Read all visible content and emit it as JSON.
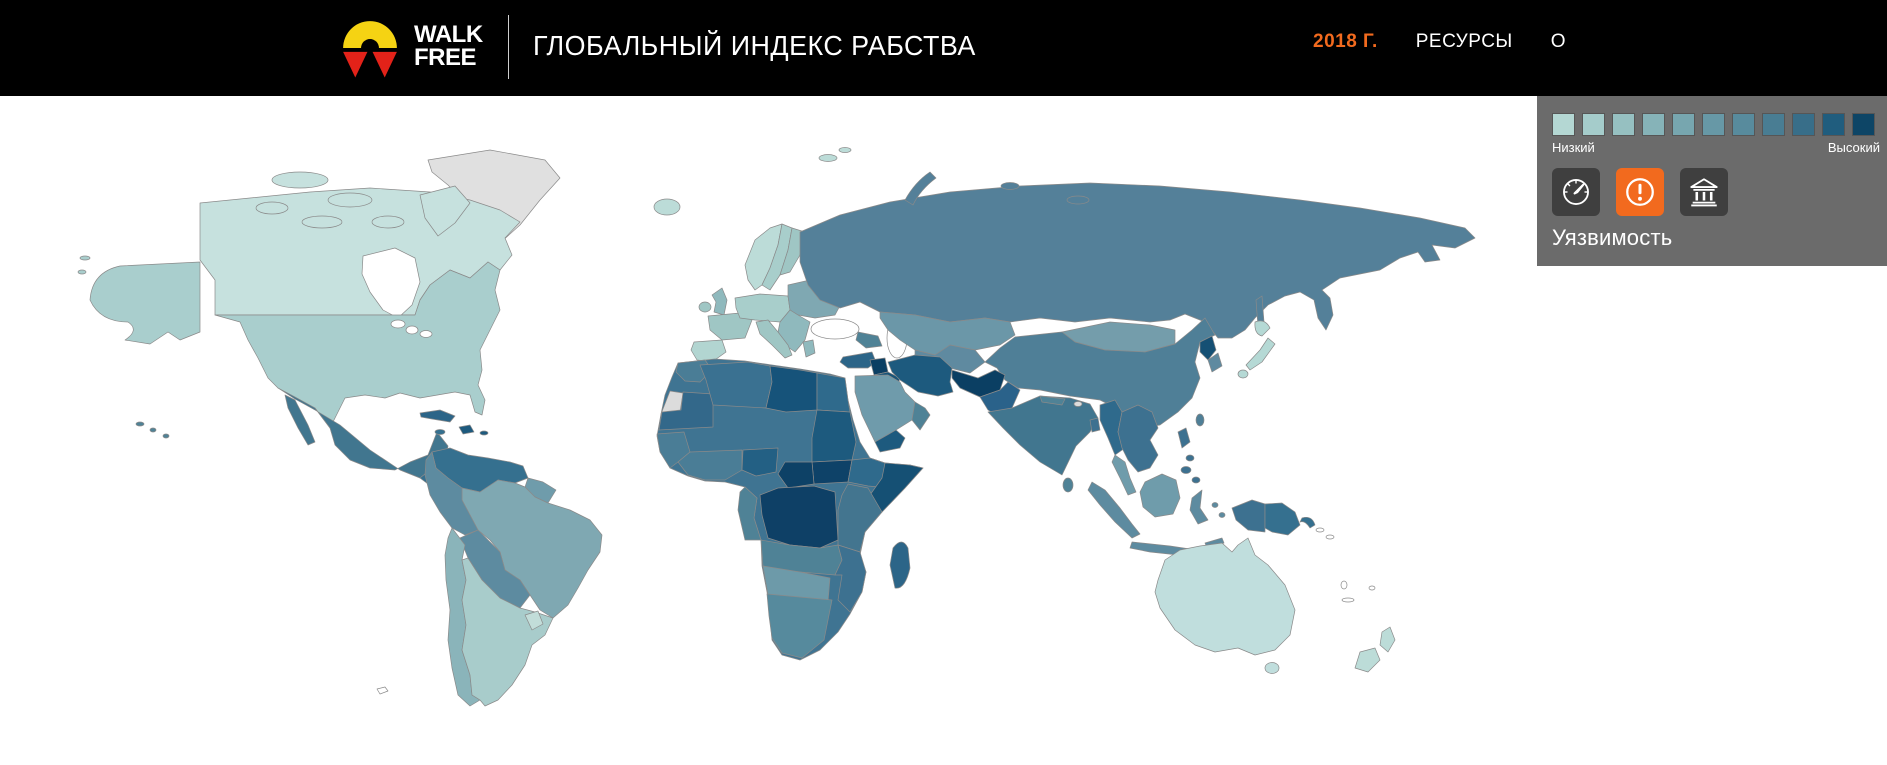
{
  "theme": {
    "header_bg": "#000000",
    "accent_orange": "#f26a1e",
    "panel_bg": "#6b6b6b",
    "button_bg": "#3f3f3f",
    "map_background": "#ffffff",
    "country_border": "#8a8a8a",
    "no_data_color": "#e0e0e0"
  },
  "header": {
    "logo_line1": "WALK",
    "logo_line2": "FREE",
    "title": "ГЛОБАЛЬНЫЙ ИНДЕКС РАБСТВА",
    "nav": {
      "year": "2018 Г.",
      "resources": "РЕСУРСЫ",
      "about": "О"
    }
  },
  "legend": {
    "low_label": "Низкий",
    "high_label": "Высокий",
    "colors": [
      "#b4d7d3",
      "#a5cccb",
      "#96c0c1",
      "#86b3b8",
      "#77a6af",
      "#6798a6",
      "#588b9d",
      "#497d93",
      "#386e89",
      "#205d7e",
      "#0d4566"
    ]
  },
  "controls": {
    "active_metric_label": "Уязвимость",
    "buttons": [
      {
        "id": "prevalence",
        "icon": "gauge-icon",
        "active": false
      },
      {
        "id": "vulnerability",
        "icon": "exclamation-icon",
        "active": true
      },
      {
        "id": "government-response",
        "icon": "bank-icon",
        "active": false
      }
    ]
  },
  "map": {
    "regions": {
      "greenland": "#e0e0e0",
      "canada": "#c6e1de",
      "alaska": "#a9cecd",
      "usa": "#a9cecd",
      "hawaii": "#4f8296",
      "mexico": "#41768f",
      "central_america": "#35708f",
      "cuba": "#2c6588",
      "hispaniola": "#1d5a7e",
      "jamaica": "#35708f",
      "colombia_venezuela": "#35708f",
      "guyanas": "#6f9cab",
      "brazil": "#7fa8b2",
      "peru_ecuador": "#5d8ba0",
      "bolivia_paraguay": "#5d8ba0",
      "chile": "#8ab4ba",
      "argentina": "#a8cccb",
      "uruguay": "#c2ddd9",
      "iceland": "#bcdcd8",
      "norway": "#bcdcd8",
      "sweden": "#a8cecb",
      "finland": "#9fc6c4",
      "uk": "#8fb9bd",
      "ireland": "#9fc6c4",
      "france": "#9fc6c4",
      "iberia": "#b2d5d1",
      "central_europe": "#a8cecb",
      "eastern_europe": "#7fa8b2",
      "balkans": "#8fb9bd",
      "italy": "#9fc6c4",
      "greece": "#8fb9bd",
      "svalbard": "#bcdcd8",
      "russia": "#548099",
      "kazakhstan": "#6b97a8",
      "central_asia": "#5f8aa0",
      "caucasus": "#4f8296",
      "mongolia": "#749dab",
      "china": "#4f7f97",
      "taiwan": "#4f7f97",
      "north_korea": "#155074",
      "south_korea": "#5f8aa0",
      "japan": "#b5d9d5",
      "afghanistan": "#0b3f63",
      "pakistan": "#2a628a",
      "india": "#41768f",
      "nepal": "#4f8296",
      "bhutan": "#dcdcdc",
      "bangladesh": "#3d7190",
      "sri_lanka": "#4f8296",
      "iran": "#1d5a7e",
      "iraq": "#175478",
      "syria": "#0b3f63",
      "turkey": "#2c6588",
      "saudi_arabia": "#6f9bab",
      "yemen": "#1d5a7e",
      "oman": "#4f8296",
      "morocco": "#4a7d96",
      "western_sahara": "#dcdcdc",
      "algeria": "#3a7191",
      "libya": "#16537a",
      "egypt": "#2f6a8c",
      "mauritania": "#33688a",
      "sahel": "#3f7492",
      "senegal_guinea": "#4a7d96",
      "ghana_ivory": "#4a7d96",
      "nigeria": "#236084",
      "cameroon_gabon": "#4f8296",
      "sudan": "#1d5a7e",
      "south_sudan": "#0e4268",
      "central_african_republic": "#0d4166",
      "ethiopia": "#2f6a8c",
      "somalia": "#155074",
      "drc": "#0e4066",
      "kenya_tanzania": "#43758f",
      "angola_zambia": "#4f8296",
      "mozambique": "#3d7190",
      "namibia_botswana": "#6d9aa9",
      "south_africa": "#568a9d",
      "madagascar": "#2c6588",
      "myanmar": "#2f6a8c",
      "indochina": "#3d7190",
      "malay_peninsula": "#6f9cab",
      "sumatra": "#5d8ba0",
      "java": "#5d8ba0",
      "borneo": "#6f9cab",
      "sulawesi": "#5d8ba0",
      "timor": "#5d8ba0",
      "philippines": "#3d7190",
      "west_papua": "#3d7190",
      "papua_new_guinea": "#35708f",
      "australia": "#c0dedd",
      "new_zealand": "#bcdcd8"
    }
  }
}
